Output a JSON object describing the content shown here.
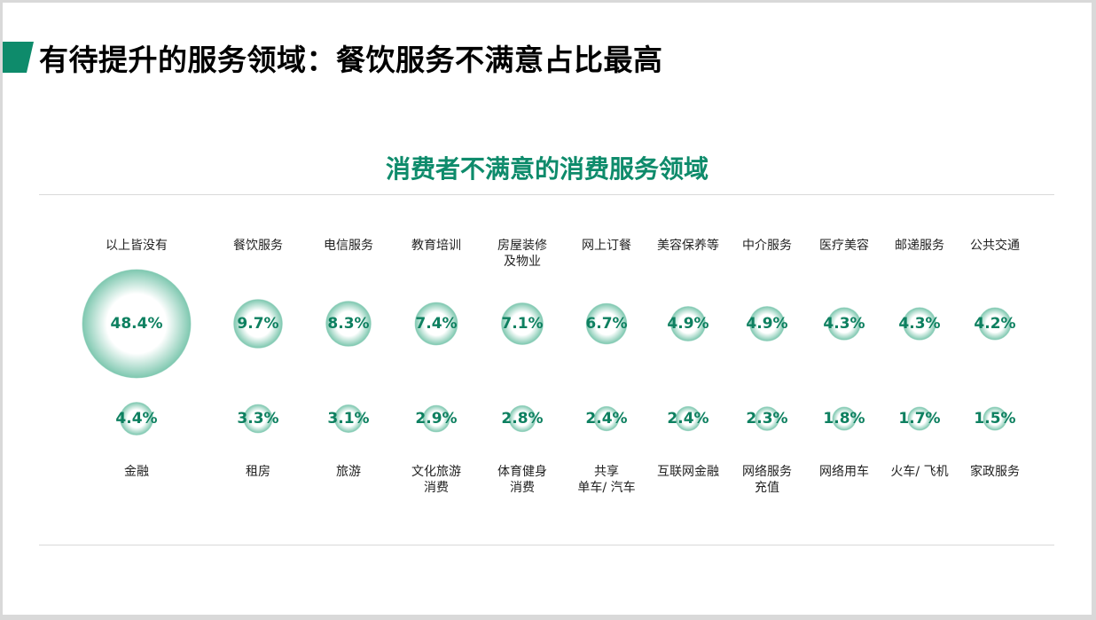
{
  "slide_title": "有待提升的服务领域：餐饮服务不满意占比最高",
  "chart_data": {
    "type": "bubble",
    "title": "消费者不满意的消费服务领域",
    "rows": [
      {
        "categories": [
          "以上皆没有",
          "餐饮服务",
          "电信服务",
          "教育培训",
          "房屋装修\n及物业",
          "网上订餐",
          "美容保养等",
          "中介服务",
          "医疗美容",
          "邮递服务",
          "公共交通"
        ],
        "values": [
          48.4,
          9.7,
          8.3,
          7.4,
          7.1,
          6.7,
          4.9,
          4.9,
          4.3,
          4.3,
          4.2
        ],
        "labels": [
          "48.4%",
          "9.7%",
          "8.3%",
          "7.4%",
          "7.1%",
          "6.7%",
          "4.9%",
          "4.9%",
          "4.3%",
          "4.3%",
          "4.2%"
        ]
      },
      {
        "categories": [
          "金融",
          "租房",
          "旅游",
          "文化旅游\n消费",
          "体育健身\n消费",
          "共享\n单车/ 汽车",
          "互联网金融",
          "网络服务\n充值",
          "网络用车",
          "火车/ 飞机",
          "家政服务"
        ],
        "values": [
          4.4,
          3.3,
          3.1,
          2.9,
          2.8,
          2.4,
          2.4,
          2.3,
          1.8,
          1.7,
          1.5
        ],
        "labels": [
          "4.4%",
          "3.3%",
          "3.1%",
          "2.9%",
          "2.8%",
          "2.4%",
          "2.4%",
          "2.3%",
          "1.8%",
          "1.7%",
          "1.5%"
        ]
      }
    ],
    "unit": "%",
    "colors": {
      "accent": "#0e8b6b",
      "bubble_edge": "#7fc8b0",
      "bubble_center": "#ffffff"
    }
  }
}
